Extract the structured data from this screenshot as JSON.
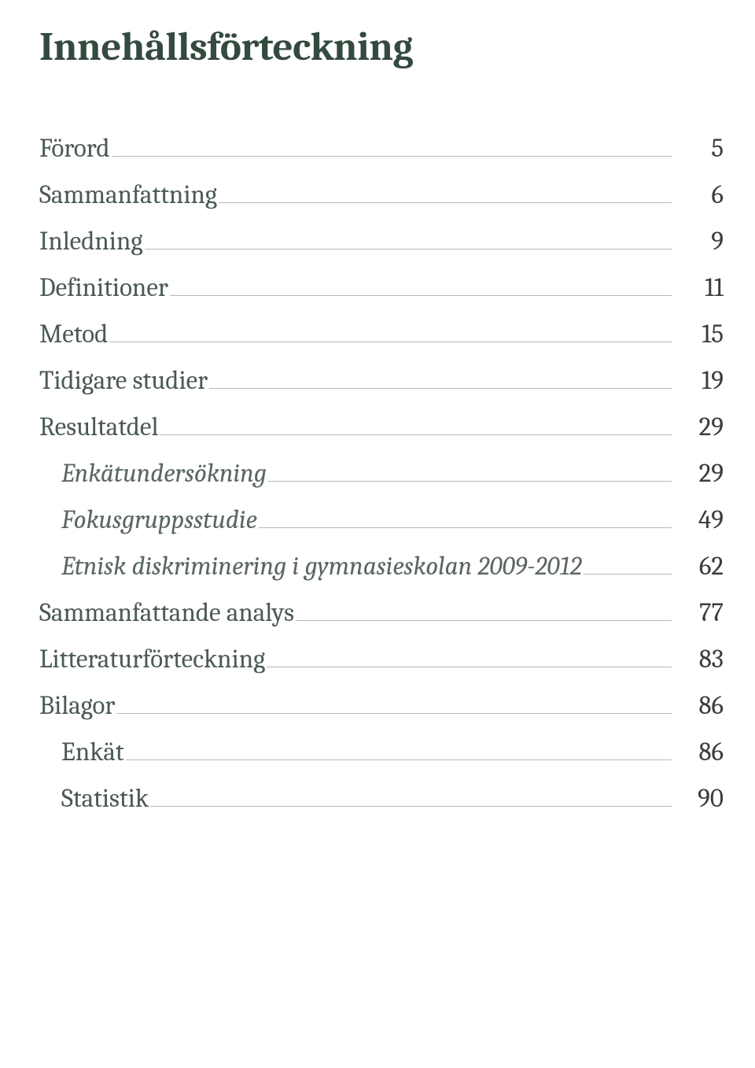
{
  "title": "Innehållsförteckning",
  "colors": {
    "title_color": "#344a3f",
    "label_color": "#4c5a54",
    "italic_color": "#5b6763",
    "page_color": "#3c3c3c",
    "leader_color": "#b8b8b8",
    "background_color": "#ffffff"
  },
  "typography": {
    "title_fontsize": 51,
    "row_fontsize": 33,
    "font_family": "Cambria, Palatino, Georgia, serif"
  },
  "toc": [
    {
      "label": "Förord",
      "page": "5",
      "level": 0,
      "italic": false
    },
    {
      "label": "Sammanfattning",
      "page": "6",
      "level": 0,
      "italic": false
    },
    {
      "label": "Inledning",
      "page": "9",
      "level": 0,
      "italic": false
    },
    {
      "label": "Definitioner",
      "page": "11",
      "level": 0,
      "italic": false
    },
    {
      "label": "Metod",
      "page": "15",
      "level": 0,
      "italic": false
    },
    {
      "label": "Tidigare studier",
      "page": "19",
      "level": 0,
      "italic": false
    },
    {
      "label": "Resultatdel",
      "page": "29",
      "level": 0,
      "italic": false
    },
    {
      "label": "Enkätundersökning",
      "page": "29",
      "level": 1,
      "italic": true
    },
    {
      "label": "Fokusgruppsstudie",
      "page": "49",
      "level": 1,
      "italic": true
    },
    {
      "label": "Etnisk diskriminering i gymnasieskolan 2009-2012",
      "page": "62",
      "level": 1,
      "italic": true
    },
    {
      "label": "Sammanfattande analys",
      "page": "77",
      "level": 0,
      "italic": false
    },
    {
      "label": "Litteraturförteckning",
      "page": "83",
      "level": 0,
      "italic": false
    },
    {
      "label": "Bilagor",
      "page": "86",
      "level": 0,
      "italic": false
    },
    {
      "label": "Enkät",
      "page": "86",
      "level": 1,
      "italic": false
    },
    {
      "label": "Statistik",
      "page": "90",
      "level": 1,
      "italic": false
    }
  ]
}
